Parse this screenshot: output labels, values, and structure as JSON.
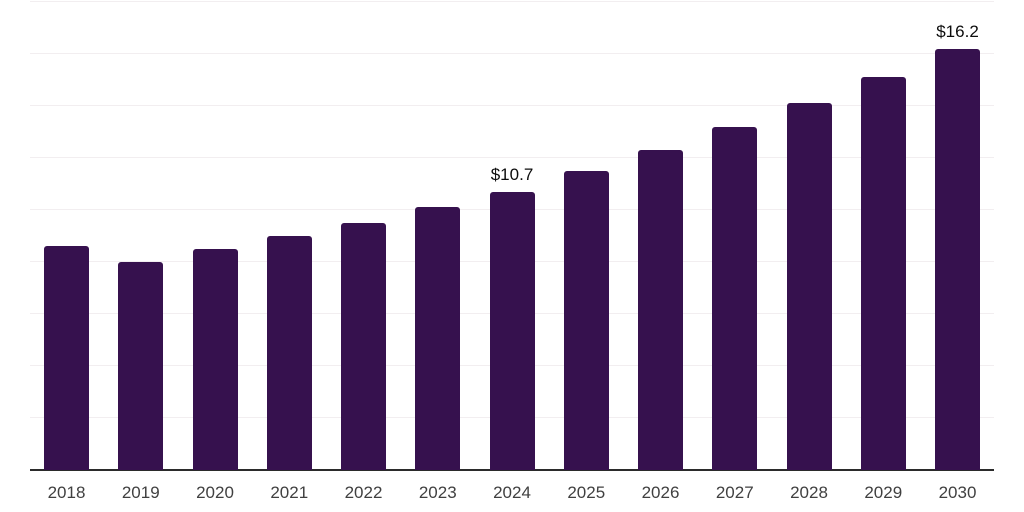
{
  "chart_data": {
    "type": "bar",
    "title": "",
    "xlabel": "",
    "ylabel": "",
    "categories": [
      "2018",
      "2019",
      "2020",
      "2021",
      "2022",
      "2023",
      "2024",
      "2025",
      "2026",
      "2027",
      "2028",
      "2029",
      "2030"
    ],
    "values": [
      8.6,
      8.0,
      8.5,
      9.0,
      9.5,
      10.1,
      10.7,
      11.5,
      12.3,
      13.2,
      14.1,
      15.1,
      16.2
    ],
    "data_labels": [
      "",
      "",
      "",
      "",
      "",
      "",
      "$10.7",
      "",
      "",
      "",
      "",
      "",
      "$16.2"
    ],
    "ylim": [
      0,
      18
    ],
    "y_gridline_step": 2,
    "grid": true,
    "legend": false,
    "y_tick_labels_visible": false,
    "colors": {
      "bar": "#36114E",
      "axis_line": "#2b2b2b",
      "gridline": "#f2eef0",
      "data_label": "#0d0d0d",
      "tick_label": "#404040",
      "background": "#ffffff"
    }
  }
}
